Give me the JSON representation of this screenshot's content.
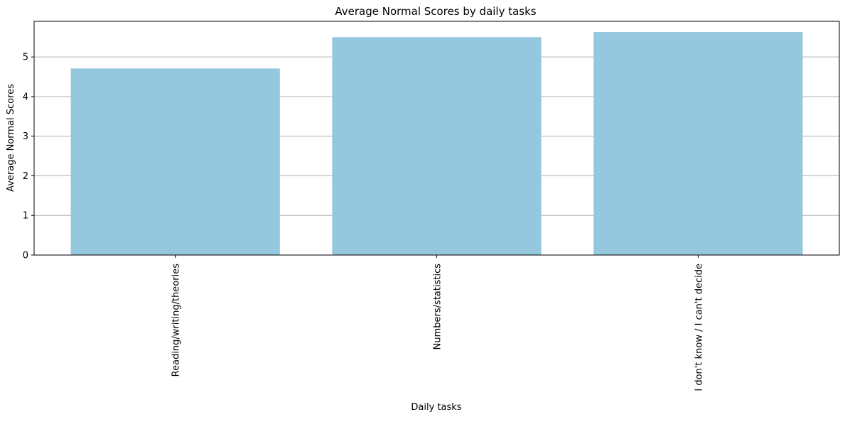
{
  "chart_data": {
    "type": "bar",
    "title": "Average Normal Scores by daily tasks",
    "xlabel": "Daily tasks",
    "ylabel": "Average Normal Scores",
    "categories": [
      "Reading/writing/theories",
      "Numbers/statistics",
      "I don't know / I can't decide"
    ],
    "values": [
      4.71,
      5.5,
      5.63
    ],
    "ylim": [
      0,
      5.9
    ],
    "yticks": [
      0,
      1,
      2,
      3,
      4,
      5
    ],
    "grid": "y",
    "legend": "none",
    "colors": {
      "bar": "#95c8de",
      "grid": "#b0b0b0",
      "axis": "#000000"
    }
  }
}
